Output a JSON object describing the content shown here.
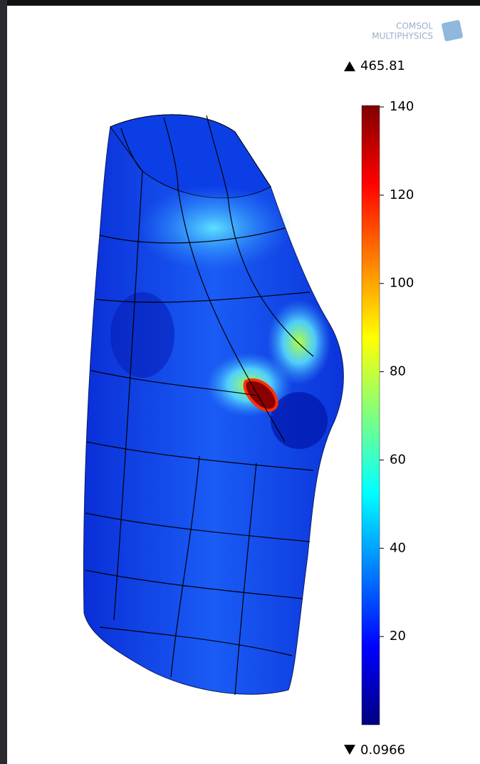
{
  "logo": {
    "line1": "COMSOL",
    "line2": "MULTIPHYSICS"
  },
  "colorbar": {
    "max": 465.81,
    "min": 0.0966,
    "lim": [
      0,
      140
    ],
    "ticks": [
      20,
      40,
      60,
      80,
      100,
      120,
      140
    ]
  }
}
